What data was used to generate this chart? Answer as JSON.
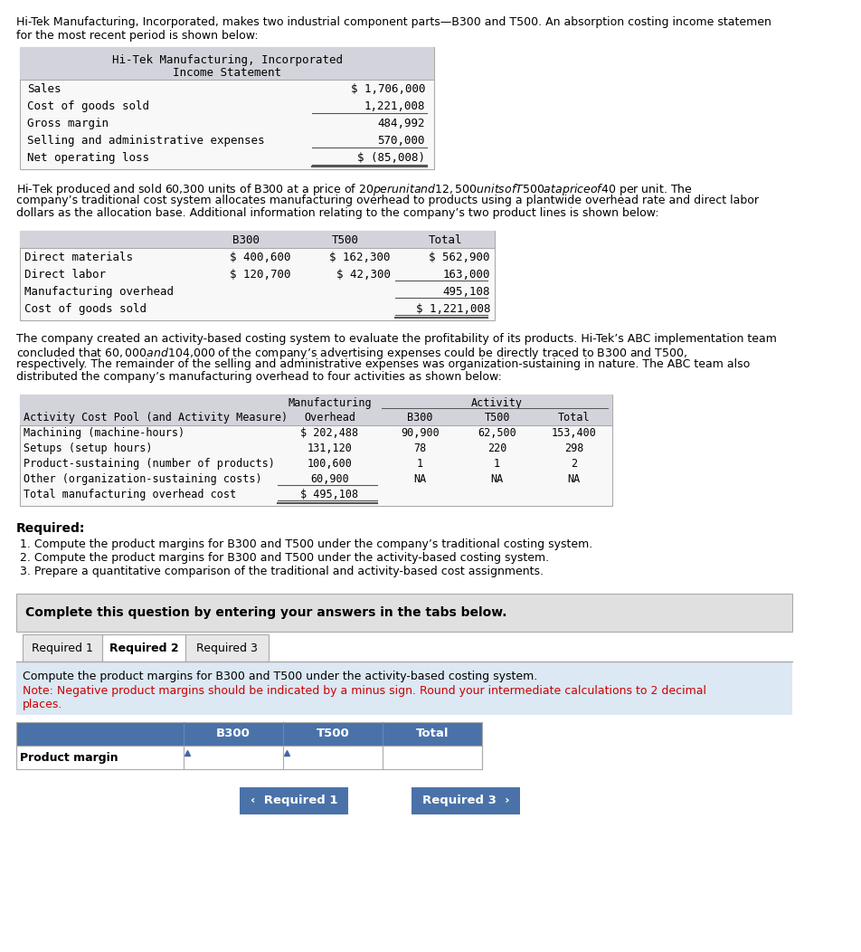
{
  "bg_color": "#ffffff",
  "intro_text1": "Hi-Tek Manufacturing, Incorporated, makes two industrial component parts—B300 and T500. An absorption costing income statemen",
  "intro_text2": "for the most recent period is shown below:",
  "income_stmt_title1": "Hi-Tek Manufacturing, Incorporated",
  "income_stmt_title2": "Income Statement",
  "income_rows": [
    [
      "Sales",
      "$ 1,706,000"
    ],
    [
      "Cost of goods sold",
      "1,221,008"
    ],
    [
      "Gross margin",
      "484,992"
    ],
    [
      "Selling and administrative expenses",
      "570,000"
    ],
    [
      "Net operating loss",
      "$ (85,008)"
    ]
  ],
  "para2_lines": [
    "Hi-Tek produced and sold 60,300 units of B300 at a price of $20 per unit and 12,500 units of T500 at a price of $40 per unit. The",
    "company’s traditional cost system allocates manufacturing overhead to products using a plantwide overhead rate and direct labor",
    "dollars as the allocation base. Additional information relating to the company’s two product lines is shown below:"
  ],
  "table2_headers": [
    "",
    "B300",
    "T500",
    "Total"
  ],
  "table2_rows": [
    [
      "Direct materials",
      "$ 400,600",
      "$ 162,300",
      "$ 562,900"
    ],
    [
      "Direct labor",
      "$ 120,700",
      "$ 42,300",
      "163,000"
    ],
    [
      "Manufacturing overhead",
      "",
      "",
      "495,108"
    ],
    [
      "Cost of goods sold",
      "",
      "",
      "$ 1,221,008"
    ]
  ],
  "para3_lines": [
    "The company created an activity-based costing system to evaluate the profitability of its products. Hi-Tek’s ABC implementation team",
    "concluded that $60,000 and $104,000 of the company’s advertising expenses could be directly traced to B300 and T500,",
    "respectively. The remainder of the selling and administrative expenses was organization-sustaining in nature. The ABC team also",
    "distributed the company’s manufacturing overhead to four activities as shown below:"
  ],
  "table3_rows": [
    [
      "Machining (machine-hours)",
      "$ 202,488",
      "90,900",
      "62,500",
      "153,400"
    ],
    [
      "Setups (setup hours)",
      "131,120",
      "78",
      "220",
      "298"
    ],
    [
      "Product-sustaining (number of products)",
      "100,600",
      "1",
      "1",
      "2"
    ],
    [
      "Other (organization-sustaining costs)",
      "60,900",
      "NA",
      "NA",
      "NA"
    ],
    [
      "Total manufacturing overhead cost",
      "$ 495,108",
      "",
      "",
      ""
    ]
  ],
  "required_label": "Required:",
  "required_items": [
    "1. Compute the product margins for B300 and T500 under the company’s traditional costing system.",
    "2. Compute the product margins for B300 and T500 under the activity-based costing system.",
    "3. Prepare a quantitative comparison of the traditional and activity-based cost assignments."
  ],
  "complete_text": "Complete this question by entering your answers in the tabs below.",
  "tab_labels": [
    "Required 1",
    "Required 2",
    "Required 3"
  ],
  "active_tab": "Required 2",
  "tab_instruction1": "Compute the product margins for B300 and T500 under the activity-based costing system.",
  "tab_instruction2": "Note: Negative product margins should be indicated by a minus sign. Round your intermediate calculations to 2 decimal",
  "tab_instruction3": "places.",
  "answer_table_headers": [
    "",
    "B300",
    "T500",
    "Total"
  ],
  "answer_row_label": "Product margin",
  "btn1_text": "‹  Required 1",
  "btn2_text": "Required 3  ›",
  "mono_font": "DejaVu Sans Mono",
  "sans_font": "DejaVu Sans",
  "header_bg": "#d3d3db",
  "table_bg": "#f8f8f8",
  "tab_active_bg": "#ffffff",
  "tab_inactive_bg": "#e8e8e8",
  "complete_bg": "#e0e0e0",
  "instruction_bg": "#dce8f3",
  "answer_header_bg": "#4a72a8",
  "answer_header_fg": "#ffffff",
  "btn_bg": "#4a72a8",
  "btn_fg": "#ffffff",
  "note_color": "#cc0000",
  "border_color": "#aaaaaa",
  "line_color": "#555555"
}
